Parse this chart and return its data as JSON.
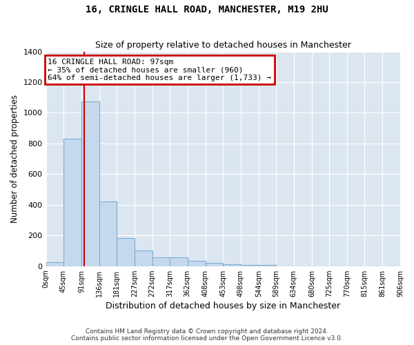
{
  "title": "16, CRINGLE HALL ROAD, MANCHESTER, M19 2HU",
  "subtitle": "Size of property relative to detached houses in Manchester",
  "xlabel": "Distribution of detached houses by size in Manchester",
  "ylabel": "Number of detached properties",
  "bar_color": "#c5d8ee",
  "bar_edge_color": "#7aafd4",
  "background_color": "#dce6f0",
  "grid_color": "#ffffff",
  "bin_edges": [
    0,
    45,
    91,
    136,
    181,
    227,
    272,
    317,
    362,
    408,
    453,
    498,
    544,
    589,
    634,
    680,
    725,
    770,
    815,
    861,
    906
  ],
  "bar_heights": [
    25,
    830,
    1075,
    420,
    185,
    100,
    58,
    55,
    35,
    20,
    12,
    8,
    6,
    0,
    0,
    0,
    0,
    0,
    0,
    0
  ],
  "property_size": 97,
  "red_line_color": "#cc0000",
  "ylim": [
    0,
    1400
  ],
  "yticks": [
    0,
    200,
    400,
    600,
    800,
    1000,
    1200,
    1400
  ],
  "annotation_text": "16 CRINGLE HALL ROAD: 97sqm\n← 35% of detached houses are smaller (960)\n64% of semi-detached houses are larger (1,733) →",
  "annotation_box_color": "#cc0000",
  "footer_line1": "Contains HM Land Registry data © Crown copyright and database right 2024.",
  "footer_line2": "Contains public sector information licensed under the Open Government Licence v3.0."
}
